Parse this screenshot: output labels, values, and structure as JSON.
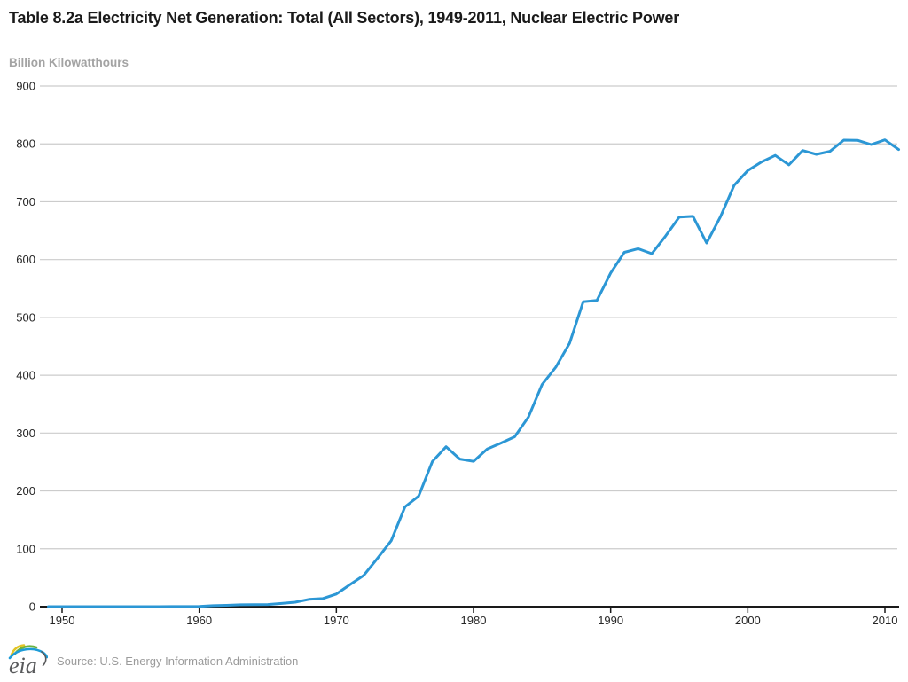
{
  "header": {
    "title": "Table 8.2a Electricity Net Generation: Total (All Sectors), 1949-2011, Nuclear Electric Power"
  },
  "chart": {
    "unit_label": "Billion Kilowatthours"
  },
  "footer": {
    "logo_text": "eia",
    "source": "Source: U.S. Energy Information Administration"
  },
  "colors": {
    "title": "#1a1a1a",
    "unit_label": "#a3a3a3",
    "line": "#2c97d5",
    "gridline": "#cccccc",
    "axis": "#1a1a1a",
    "tick_label": "#262626",
    "source_text": "#9b9b9b",
    "logo_blue": "#1e9cd7",
    "logo_green": "#6cb33f",
    "logo_yellow": "#e2c425",
    "logo_gray": "#58595b"
  },
  "chart_data": {
    "type": "line",
    "title": "Table 8.2a Electricity Net Generation: Total (All Sectors), 1949-2011, Nuclear Electric Power",
    "xlabel": "",
    "ylabel": "Billion Kilowatthours",
    "series_name": "Nuclear Electric Power",
    "ylim": [
      0,
      900
    ],
    "yticks": [
      0,
      100,
      200,
      300,
      400,
      500,
      600,
      700,
      800,
      900
    ],
    "xticks": [
      1950,
      1960,
      1970,
      1980,
      1990,
      2000,
      2010
    ],
    "grid": "horizontal",
    "legend": false,
    "x": [
      1949,
      1950,
      1951,
      1952,
      1953,
      1954,
      1955,
      1956,
      1957,
      1958,
      1959,
      1960,
      1961,
      1962,
      1963,
      1964,
      1965,
      1966,
      1967,
      1968,
      1969,
      1970,
      1971,
      1972,
      1973,
      1974,
      1975,
      1976,
      1977,
      1978,
      1979,
      1980,
      1981,
      1982,
      1983,
      1984,
      1985,
      1986,
      1987,
      1988,
      1989,
      1990,
      1991,
      1992,
      1993,
      1994,
      1995,
      1996,
      1997,
      1998,
      1999,
      2000,
      2001,
      2002,
      2003,
      2004,
      2005,
      2006,
      2007,
      2008,
      2009,
      2010,
      2011
    ],
    "values": [
      0,
      0,
      0,
      0,
      0,
      0,
      0,
      0,
      0.01,
      0.165,
      0.188,
      0.518,
      1.692,
      2.27,
      3.212,
      3.343,
      3.657,
      5.52,
      7.655,
      12.528,
      13.928,
      21.804,
      38.105,
      54.091,
      83.479,
      113.976,
      172.505,
      191.104,
      250.883,
      276.403,
      255.155,
      251.116,
      272.674,
      282.773,
      293.677,
      327.634,
      383.691,
      414.038,
      455.27,
      526.973,
      529.355,
      576.862,
      612.565,
      618.776,
      610.291,
      640.44,
      673.402,
      674.729,
      628.644,
      673.702,
      728.254,
      753.893,
      768.826,
      780.064,
      763.733,
      788.528,
      781.986,
      787.219,
      806.425,
      806.208,
      798.855,
      806.968,
      790.204
    ]
  }
}
